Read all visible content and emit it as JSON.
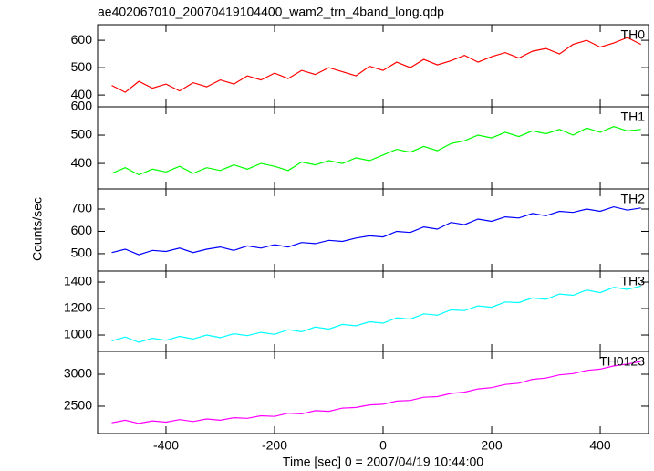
{
  "figure": {
    "title": "ae402067010_20070419104400_wam2_trn_4band_long.qdp",
    "xlabel": "Time [sec] 0 = 2007/04/19 10:44:00",
    "ylabel": "Counts/sec",
    "xlim": [
      -526,
      489
    ],
    "xticks": [
      -400,
      -200,
      0,
      200,
      400
    ],
    "x": [
      -500,
      -475,
      -450,
      -425,
      -400,
      -375,
      -350,
      -325,
      -300,
      -275,
      -250,
      -225,
      -200,
      -175,
      -150,
      -125,
      -100,
      -75,
      -50,
      -25,
      0,
      25,
      50,
      75,
      100,
      125,
      150,
      175,
      200,
      225,
      250,
      275,
      300,
      325,
      350,
      375,
      400,
      425,
      450,
      475
    ]
  },
  "chart_data": [
    {
      "type": "line",
      "ylim": [
        357,
        657
      ],
      "yticks": [
        400,
        500,
        600
      ],
      "series": [
        {
          "name": "TH0",
          "color": "#ff0000",
          "values": [
            435,
            410,
            450,
            425,
            440,
            415,
            445,
            430,
            455,
            440,
            470,
            455,
            480,
            460,
            490,
            475,
            500,
            485,
            470,
            505,
            490,
            520,
            500,
            530,
            510,
            525,
            545,
            520,
            540,
            555,
            535,
            560,
            570,
            550,
            585,
            600,
            575,
            590,
            610,
            585
          ]
        }
      ]
    },
    {
      "type": "line",
      "ylim": [
        310,
        600
      ],
      "yticks": [
        400,
        500,
        600
      ],
      "series": [
        {
          "name": "TH1",
          "color": "#00ff00",
          "values": [
            365,
            385,
            360,
            380,
            370,
            390,
            365,
            385,
            375,
            395,
            380,
            400,
            390,
            375,
            405,
            395,
            410,
            400,
            420,
            410,
            430,
            450,
            440,
            460,
            445,
            470,
            480,
            500,
            490,
            510,
            495,
            515,
            505,
            520,
            500,
            525,
            510,
            530,
            515,
            520
          ]
        }
      ]
    },
    {
      "type": "line",
      "ylim": [
        422,
        790
      ],
      "yticks": [
        500,
        600,
        700
      ],
      "series": [
        {
          "name": "TH2",
          "color": "#0000ff",
          "values": [
            505,
            520,
            495,
            515,
            510,
            525,
            505,
            520,
            530,
            515,
            535,
            525,
            540,
            530,
            550,
            545,
            560,
            555,
            570,
            580,
            575,
            600,
            595,
            620,
            610,
            640,
            630,
            655,
            645,
            665,
            660,
            680,
            670,
            690,
            685,
            700,
            690,
            710,
            695,
            705
          ]
        }
      ]
    },
    {
      "type": "line",
      "ylim": [
        876,
        1483
      ],
      "yticks": [
        1000,
        1200,
        1400
      ],
      "series": [
        {
          "name": "TH3",
          "color": "#00ffff",
          "values": [
            955,
            985,
            945,
            975,
            960,
            990,
            970,
            1000,
            980,
            1010,
            995,
            1020,
            1005,
            1040,
            1025,
            1060,
            1045,
            1080,
            1070,
            1100,
            1090,
            1130,
            1120,
            1160,
            1150,
            1190,
            1185,
            1220,
            1210,
            1250,
            1245,
            1280,
            1270,
            1310,
            1300,
            1340,
            1320,
            1360,
            1345,
            1370
          ]
        }
      ]
    },
    {
      "type": "line",
      "ylim": [
        2071,
        3357
      ],
      "yticks": [
        2500,
        3000
      ],
      "series": [
        {
          "name": "TH0123",
          "color": "#ff00ff",
          "values": [
            2240,
            2280,
            2230,
            2270,
            2250,
            2290,
            2260,
            2300,
            2280,
            2320,
            2310,
            2350,
            2340,
            2390,
            2380,
            2430,
            2420,
            2470,
            2480,
            2520,
            2530,
            2580,
            2590,
            2640,
            2650,
            2700,
            2720,
            2770,
            2790,
            2840,
            2860,
            2920,
            2940,
            2990,
            3010,
            3060,
            3080,
            3130,
            3160,
            3200
          ]
        }
      ]
    }
  ]
}
